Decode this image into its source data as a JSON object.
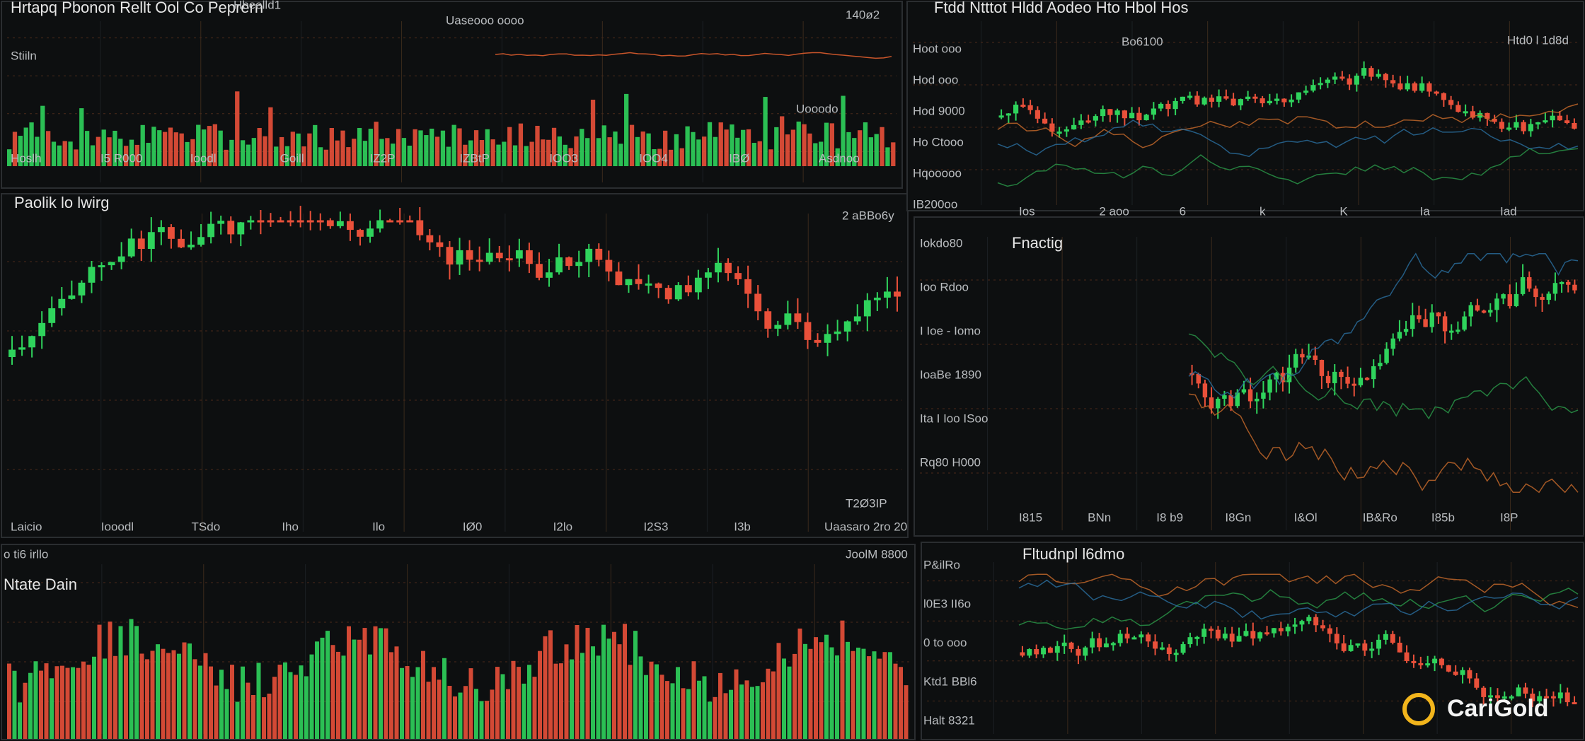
{
  "panels": [
    {
      "title": "Hrtapq Pbonon Rellt Ool Co Peprern",
      "labels": [
        "Hbeelld1",
        "Uaseooo oooo",
        "140ø2",
        "Stiiln",
        "Uooodo"
      ],
      "axis": [
        "Hoslh",
        "I5 R000",
        "Ioodl",
        "Goill",
        "IZ2P",
        "IZBtP",
        "IOO3",
        "IOO4",
        "IBØ",
        "Asdnoo"
      ]
    },
    {
      "title": "Paolik lo lwirg",
      "labels": [
        "2 aBBo6y",
        "T2Ø3IP"
      ],
      "axis": [
        "Laicio",
        "Iooodl",
        "TSdo",
        "Iho",
        "Ilo",
        "IØ0",
        "I2lo",
        "I2S3",
        "I3b",
        "Uaasaro 2ro 20"
      ]
    },
    {
      "title": "Ntate Dain",
      "labels": [
        "o ti6 irllo",
        "JoolM 8800"
      ]
    },
    {
      "title": "Ftdd Ntttot Hldd Aodeo Hto Hbol Hos",
      "labels": [
        "Bo6100",
        "Htd0 l 1d8d"
      ],
      "yaxis": [
        "Hoot ooo",
        "Hod ooo",
        "Hod 9000",
        "Ho Ctooo",
        "Hqooooo",
        "IB200oo"
      ],
      "axis": [
        "Ios",
        "2 aoo",
        "6",
        "k",
        "K",
        "Ia",
        "Iad"
      ]
    },
    {
      "title": "Fnactig",
      "yaxis": [
        "Iokdo80",
        "Ioo Rdoo",
        "I Ioe - Iomo",
        "IoaBe 1890",
        "Ita I Ioo ISoo",
        "Rq80 H000"
      ],
      "axis": [
        "I815",
        "BNn",
        "I8 b9",
        "I8Gn",
        "I&Ol",
        "IB&Ro",
        "I85b",
        "I8P"
      ]
    },
    {
      "title": "Fltudnpl l6dmo",
      "yaxis": [
        "P&ilRo",
        "l0E3 II6o",
        "0 to ooo",
        "Ktd1 BBl6",
        "Halt 8321"
      ]
    }
  ],
  "logo": "CariGold"
}
